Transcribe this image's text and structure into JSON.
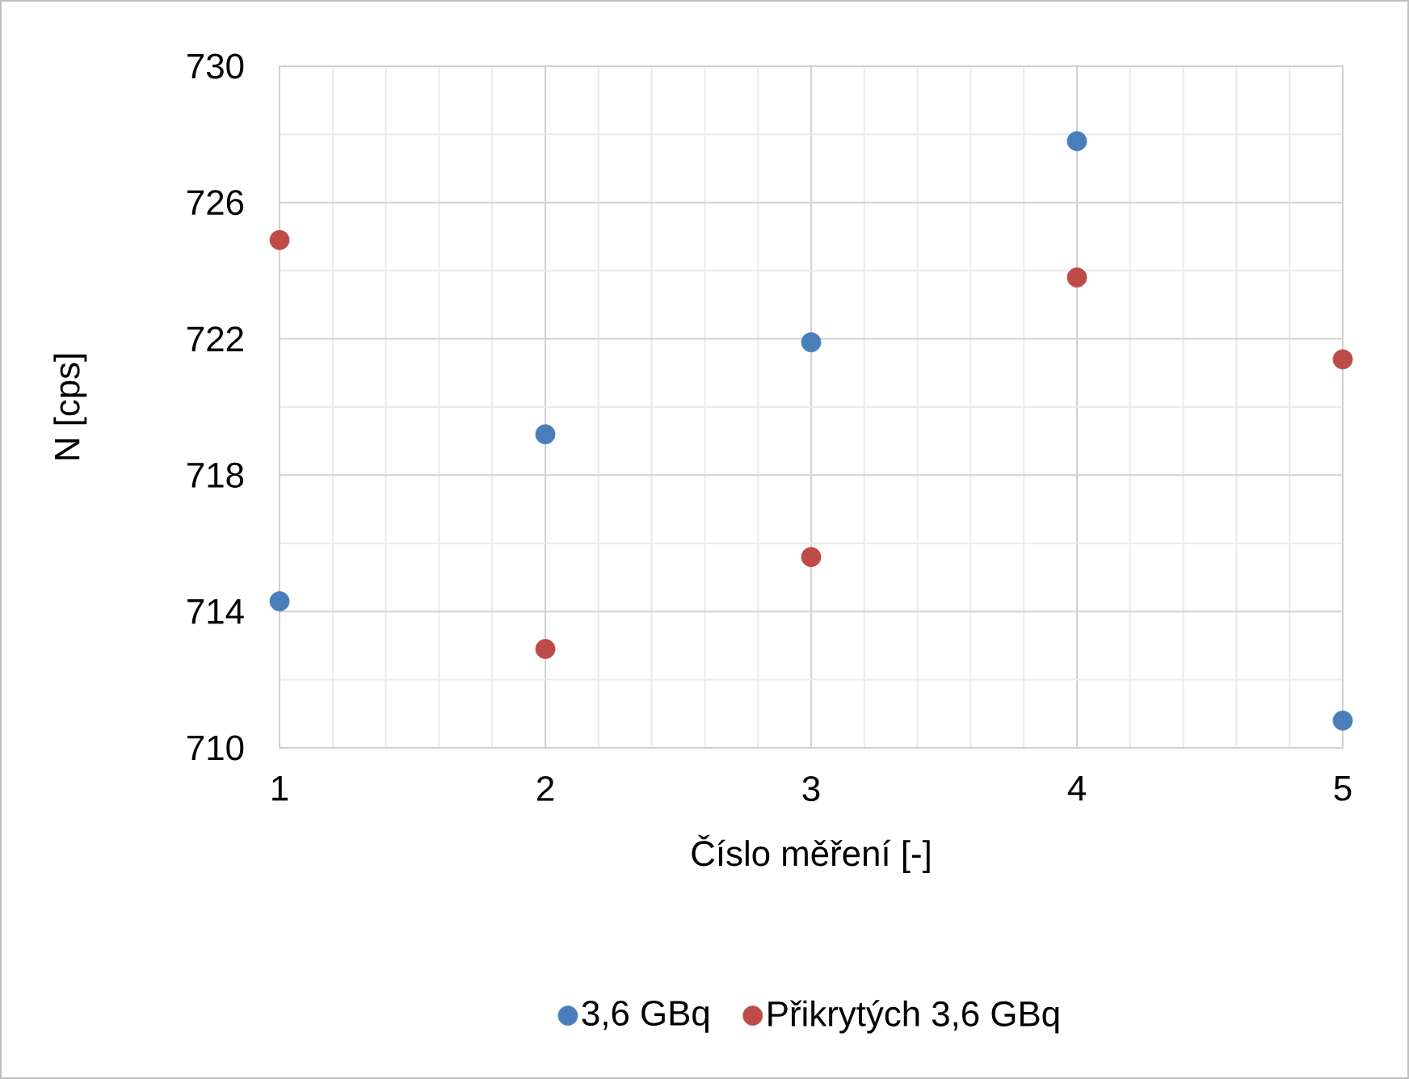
{
  "chart_data": {
    "type": "scatter",
    "xlabel": "Číslo měření [-]",
    "ylabel": "N [cps]",
    "x": [
      1,
      2,
      3,
      4,
      5
    ],
    "series": [
      {
        "name": "3,6 GBq",
        "color": "#4a7ebb",
        "values": [
          714.3,
          719.2,
          721.9,
          727.8,
          710.8
        ]
      },
      {
        "name": "Přikrytých 3,6 GBq",
        "color": "#be4b48",
        "values": [
          724.9,
          712.9,
          715.6,
          723.8,
          721.4
        ]
      }
    ],
    "xlim": [
      1,
      5
    ],
    "xticks": [
      1,
      2,
      3,
      4,
      5
    ],
    "ylim": [
      710,
      730
    ],
    "yticks": [
      710,
      714,
      718,
      722,
      726,
      730
    ],
    "grid": true,
    "legend": "bottom",
    "marker": "circle"
  }
}
